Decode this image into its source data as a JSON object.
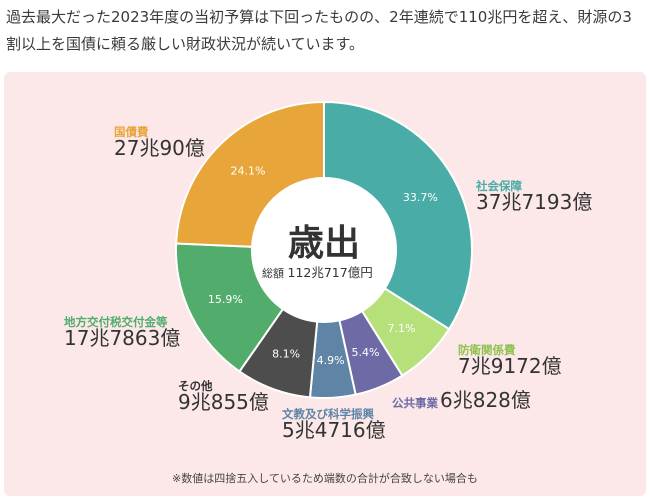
{
  "intro_text": "過去最大だった2023年度の当初予算は下回ったものの、2年連続で110兆円を超え、財源の3割以上を国債に頼る厳しい財政状況が続いています。",
  "center": {
    "title": "歳出",
    "total_label": "総額",
    "total_value": "112兆717億円"
  },
  "note": "※数値は四捨五入しているため端数の合計が合致しない場合も",
  "chart_data": {
    "type": "pie",
    "donut": true,
    "title": "歳出",
    "slices": [
      {
        "name": "社会保障",
        "percent": 33.7,
        "pct_label": "33.7%",
        "amount": "37兆7193億",
        "color": "#4aaca7"
      },
      {
        "name": "防衛関係費",
        "percent": 7.1,
        "pct_label": "7.1%",
        "amount": "7兆9172億",
        "color": "#b5e07a"
      },
      {
        "name": "公共事業",
        "percent": 5.4,
        "pct_label": "5.4%",
        "amount": "6兆828億",
        "color": "#6e6aa6"
      },
      {
        "name": "文教及び科学振興",
        "percent": 4.9,
        "pct_label": "4.9%",
        "amount": "5兆4716億",
        "color": "#5f84a6"
      },
      {
        "name": "その他",
        "percent": 8.1,
        "pct_label": "8.1%",
        "amount": "9兆855億",
        "color": "#4d4d4d"
      },
      {
        "name": "地方交付税交付金等",
        "percent": 15.9,
        "pct_label": "15.9%",
        "amount": "17兆7863億",
        "color": "#52ad6c"
      },
      {
        "name": "国債費",
        "percent": 24.1,
        "pct_label": "24.1%",
        "amount": "27兆90億",
        "color": "#e8a53a"
      }
    ]
  }
}
